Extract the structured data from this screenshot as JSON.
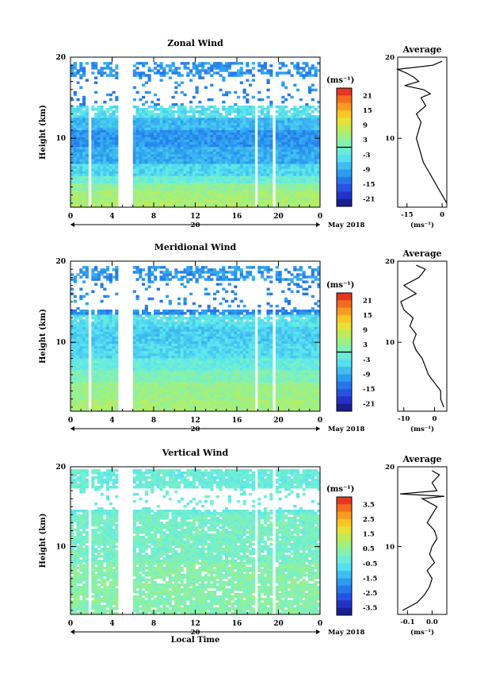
{
  "chart_data": [
    {
      "type": "heatmap",
      "title": "Zonal Wind",
      "ylabel": "Height (km)",
      "xlabel": "",
      "xticks": [
        "0",
        "4",
        "8",
        "12",
        "16",
        "20",
        "0"
      ],
      "yticks": [
        "20",
        "10"
      ],
      "ylim": [
        1.5,
        20
      ],
      "xlim": [
        0,
        24
      ],
      "date_tick": "20",
      "date_label": "May 2018",
      "colorbar_unit": "(ms⁻¹)",
      "colorbar_ticks": [
        "21",
        "15",
        "9",
        "3",
        "-3",
        "-9",
        "-15",
        "-21"
      ],
      "colorbar_range": [
        -24,
        24
      ],
      "gaps_hours": [
        [
          1.6,
          2.0
        ],
        [
          4.7,
          5.9
        ],
        [
          17.8,
          18.1
        ],
        [
          19.4,
          19.7
        ]
      ],
      "profile": {
        "title": "Average",
        "xticks": [
          "-15",
          "0"
        ],
        "xrange": [
          -19,
          2
        ],
        "yticks": [
          "20",
          "10"
        ],
        "unit": "(ms⁻¹)",
        "height_km": [
          2,
          3,
          4,
          5,
          6,
          7,
          8,
          9,
          10,
          11,
          12,
          13,
          14,
          15,
          15.5,
          16,
          16.5,
          17,
          17.5,
          18,
          18.5,
          19,
          19.5
        ],
        "values": [
          2,
          0,
          -2,
          -4,
          -6,
          -8,
          -9,
          -10,
          -11,
          -10,
          -9,
          -11,
          -7,
          -9,
          -5,
          -8,
          -16,
          -10,
          -12,
          -15,
          -19,
          -4,
          0
        ]
      },
      "zones": [
        {
          "h0": 1.5,
          "h1": 2.5,
          "v": 6
        },
        {
          "h0": 2.5,
          "h1": 3.5,
          "v": 5
        },
        {
          "h0": 3.5,
          "h1": 4.5,
          "v": 3
        },
        {
          "h0": 4.5,
          "h1": 5.5,
          "v": -1
        },
        {
          "h0": 5.5,
          "h1": 7,
          "v": -5
        },
        {
          "h0": 7,
          "h1": 9,
          "v": -9
        },
        {
          "h0": 9,
          "h1": 11,
          "v": -11
        },
        {
          "h0": 11,
          "h1": 12.5,
          "v": -8
        },
        {
          "h0": 12.5,
          "h1": 14,
          "v": -4
        }
      ]
    },
    {
      "type": "heatmap",
      "title": "Meridional Wind",
      "ylabel": "Height (km)",
      "xlabel": "",
      "xticks": [
        "0",
        "4",
        "8",
        "12",
        "16",
        "20",
        "0"
      ],
      "yticks": [
        "20",
        "10"
      ],
      "ylim": [
        1.5,
        20
      ],
      "xlim": [
        0,
        24
      ],
      "date_tick": "20",
      "date_label": "May 2018",
      "colorbar_unit": "(ms⁻¹)",
      "colorbar_ticks": [
        "21",
        "15",
        "9",
        "3",
        "-3",
        "-9",
        "-15",
        "-21"
      ],
      "colorbar_range": [
        -24,
        24
      ],
      "gaps_hours": [
        [
          1.6,
          2.0
        ],
        [
          4.7,
          5.9
        ],
        [
          17.8,
          18.1
        ],
        [
          19.4,
          19.7
        ]
      ],
      "profile": {
        "title": "Average",
        "xticks": [
          "-10",
          "0"
        ],
        "xrange": [
          -12,
          4
        ],
        "yticks": [
          "20",
          "10"
        ],
        "unit": "(ms⁻¹)",
        "height_km": [
          2,
          3,
          4,
          5,
          6,
          7,
          8,
          9,
          10,
          11,
          12,
          13,
          14,
          15,
          16,
          17,
          18,
          19,
          19.5
        ],
        "values": [
          3,
          2,
          2,
          0,
          -2,
          -3,
          -4,
          -6,
          -7,
          -6,
          -8,
          -7,
          -10,
          -11,
          -6,
          -10,
          -5,
          -3,
          -6
        ]
      },
      "zones": [
        {
          "h0": 1.5,
          "h1": 3,
          "v": 5
        },
        {
          "h0": 3,
          "h1": 5,
          "v": 4
        },
        {
          "h0": 5,
          "h1": 6.5,
          "v": 1
        },
        {
          "h0": 6.5,
          "h1": 8,
          "v": -2
        },
        {
          "h0": 8,
          "h1": 10,
          "v": -5
        },
        {
          "h0": 10,
          "h1": 12,
          "v": -6
        },
        {
          "h0": 12,
          "h1": 13.5,
          "v": -4
        }
      ]
    },
    {
      "type": "heatmap",
      "title": "Vertical Wind",
      "ylabel": "Height (km)",
      "xlabel": "Local Time",
      "xticks": [
        "0",
        "4",
        "8",
        "12",
        "16",
        "20",
        "0"
      ],
      "yticks": [
        "20",
        "10"
      ],
      "ylim": [
        1.5,
        20
      ],
      "xlim": [
        0,
        24
      ],
      "date_tick": "20",
      "date_label": "May 2018",
      "colorbar_unit": "(ms⁻¹)",
      "colorbar_ticks": [
        "3.5",
        "2.5",
        "1.5",
        "0.5",
        "-0.5",
        "-1.5",
        "-2.5",
        "-3.5"
      ],
      "colorbar_range": [
        -4,
        4
      ],
      "gaps_hours": [
        [
          1.6,
          2.0
        ],
        [
          4.7,
          5.9
        ],
        [
          17.8,
          18.1
        ],
        [
          19.4,
          19.7
        ]
      ],
      "profile": {
        "title": "Average",
        "xticks": [
          "-0.1",
          "0.0"
        ],
        "xrange": [
          -0.14,
          0.06
        ],
        "yticks": [
          "20",
          "10"
        ],
        "unit": "(ms⁻¹)",
        "height_km": [
          2,
          3,
          4,
          5,
          6,
          7,
          8,
          9,
          10,
          11,
          12,
          13,
          14,
          15,
          16,
          16.3,
          16.6,
          17,
          18,
          19,
          19.5
        ],
        "values": [
          -0.12,
          -0.06,
          -0.03,
          -0.01,
          0.0,
          -0.02,
          0.01,
          -0.01,
          0.0,
          0.02,
          0.01,
          -0.02,
          0.0,
          0.02,
          -0.04,
          0.05,
          -0.13,
          0.02,
          0.0,
          0.03,
          0.0
        ]
      },
      "zones": [
        {
          "h0": 1.5,
          "h1": 8,
          "v": 0.3
        },
        {
          "h0": 8,
          "h1": 14,
          "v": 0.0
        },
        {
          "h0": 14,
          "h1": 20,
          "v": -0.3
        }
      ]
    }
  ]
}
